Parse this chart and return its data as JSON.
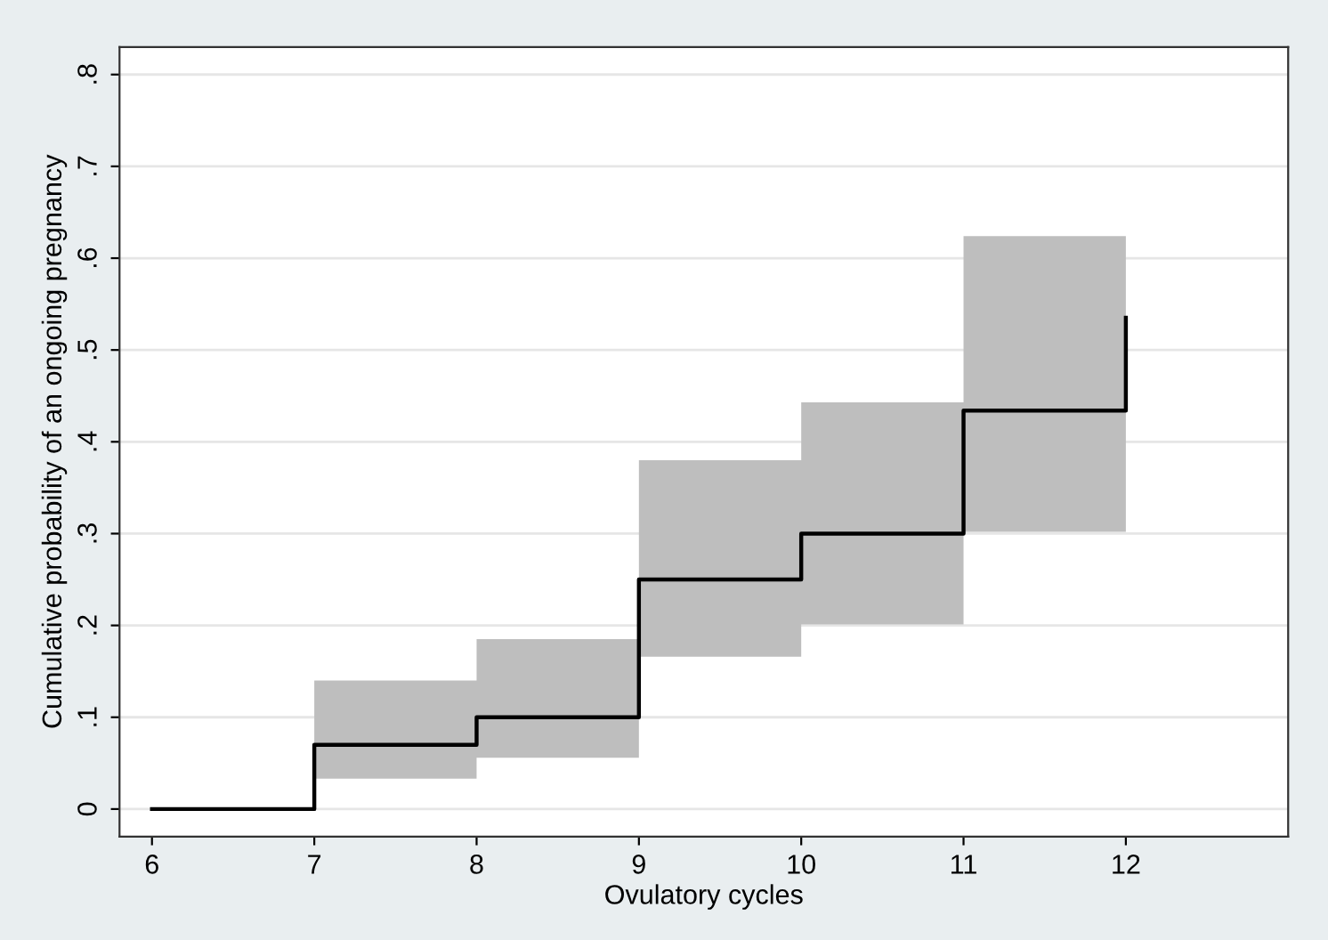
{
  "chart_data": {
    "type": "step",
    "xlabel": "Ovulatory cycles",
    "ylabel": "Cumulative probability of an ongoing pregnancy",
    "x": [
      6,
      7,
      8,
      9,
      10,
      11,
      12
    ],
    "series": [
      {
        "color": "#000000",
        "values": [
          0,
          0.07,
          0.1,
          0.25,
          0.3,
          0.434,
          0.535
        ],
        "lower": [
          null,
          0.033,
          0.056,
          0.166,
          0.201,
          0.302,
          0.302
        ],
        "upper": [
          null,
          0.14,
          0.185,
          0.38,
          0.443,
          0.624,
          0.624
        ]
      }
    ],
    "xlim": [
      5.8,
      13
    ],
    "ylim": [
      -0.03,
      0.83
    ],
    "xticks": [
      6,
      7,
      8,
      9,
      10,
      11,
      12
    ],
    "yticks": [
      {
        "value": 0,
        "label": "0"
      },
      {
        "value": 0.1,
        "label": ".1"
      },
      {
        "value": 0.2,
        "label": ".2"
      },
      {
        "value": 0.3,
        "label": ".3"
      },
      {
        "value": 0.4,
        "label": ".4"
      },
      {
        "value": 0.5,
        "label": ".5"
      },
      {
        "value": 0.6,
        "label": ".6"
      },
      {
        "value": 0.7,
        "label": ".7"
      },
      {
        "value": 0.8,
        "label": ".8"
      }
    ],
    "grid": "y",
    "legend": false
  }
}
